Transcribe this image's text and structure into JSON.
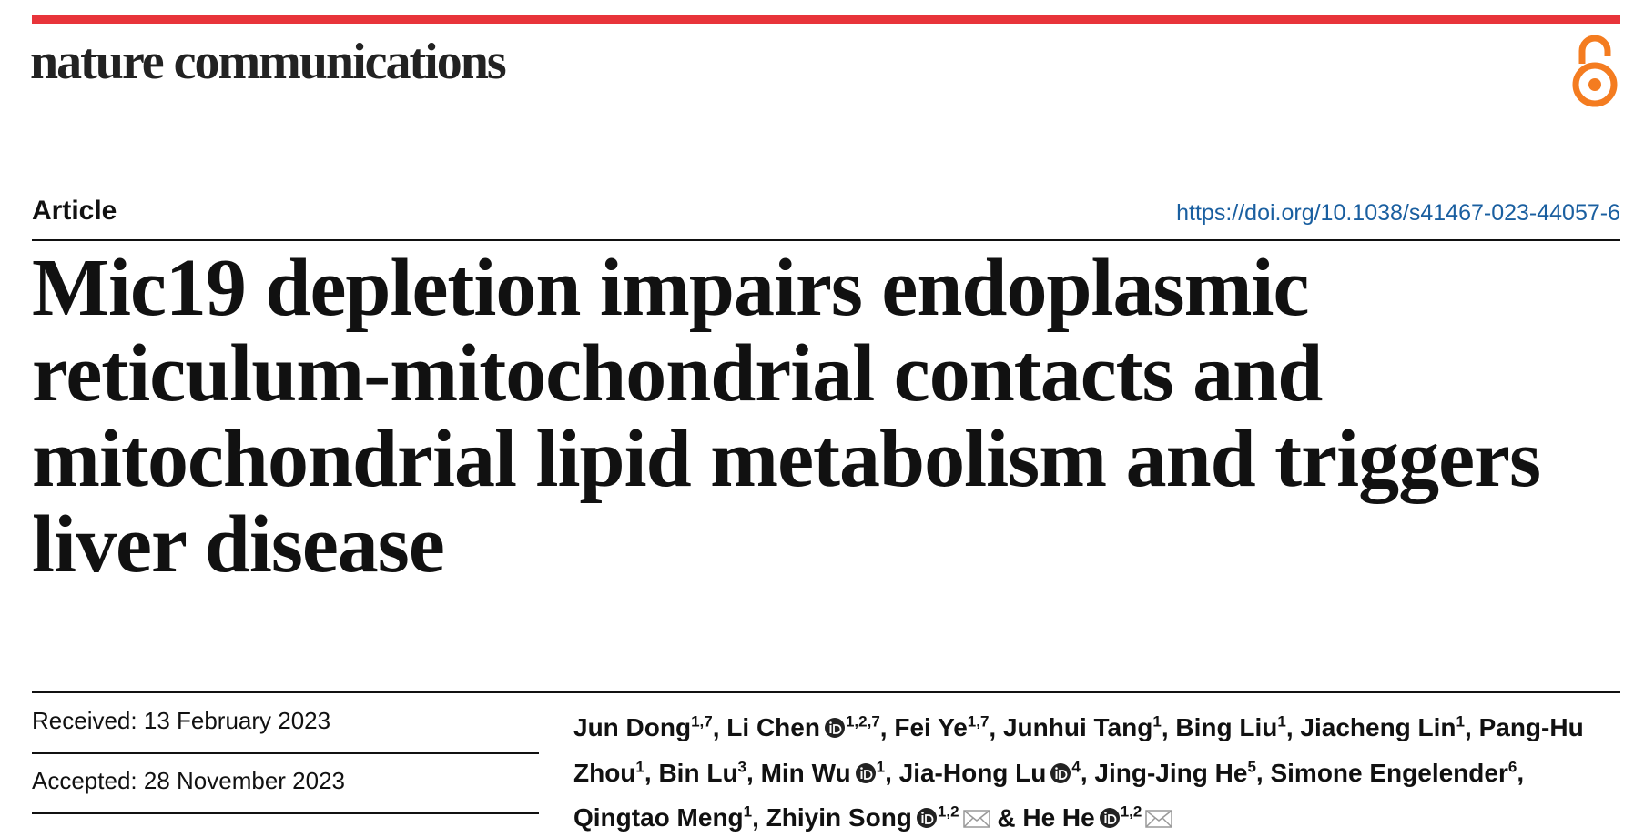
{
  "header": {
    "journal": "nature communications",
    "article_type": "Article",
    "doi": "https://doi.org/10.1038/s41467-023-44057-6"
  },
  "title": "Mic19 depletion impairs endoplasmic reticulum-mitochondrial contacts and mitochondrial lipid metabolism and triggers liver disease",
  "dates": [
    {
      "label": "Received:",
      "date": "13 February 2023"
    },
    {
      "label": "Accepted:",
      "date": "28 November 2023"
    }
  ],
  "authors": {
    "separator": ",",
    "conjunction": "&",
    "list": [
      {
        "name": "Jun Dong",
        "affiliations": "1,7",
        "orcid": false,
        "email": false
      },
      {
        "name": "Li Chen",
        "affiliations": "1,2,7",
        "orcid": true,
        "email": false
      },
      {
        "name": "Fei Ye",
        "affiliations": "1,7",
        "orcid": false,
        "email": false
      },
      {
        "name": "Junhui Tang",
        "affiliations": "1",
        "orcid": false,
        "email": false
      },
      {
        "name": "Bing Liu",
        "affiliations": "1",
        "orcid": false,
        "email": false
      },
      {
        "name": "Jiacheng Lin",
        "affiliations": "1",
        "orcid": false,
        "email": false
      },
      {
        "name": "Pang-Hu Zhou",
        "affiliations": "1",
        "orcid": false,
        "email": false
      },
      {
        "name": "Bin Lu",
        "affiliations": "3",
        "orcid": false,
        "email": false
      },
      {
        "name": "Min Wu",
        "affiliations": "1",
        "orcid": true,
        "email": false
      },
      {
        "name": "Jia-Hong Lu",
        "affiliations": "4",
        "orcid": true,
        "email": false
      },
      {
        "name": "Jing-Jing He",
        "affiliations": "5",
        "orcid": false,
        "email": false
      },
      {
        "name": "Simone Engelender",
        "affiliations": "6",
        "orcid": false,
        "email": false
      },
      {
        "name": "Qingtao Meng",
        "affiliations": "1",
        "orcid": false,
        "email": false
      },
      {
        "name": "Zhiyin Song",
        "affiliations": "1,2",
        "orcid": true,
        "email": true
      },
      {
        "name": "He He",
        "affiliations": "1,2",
        "orcid": true,
        "email": true
      }
    ]
  }
}
